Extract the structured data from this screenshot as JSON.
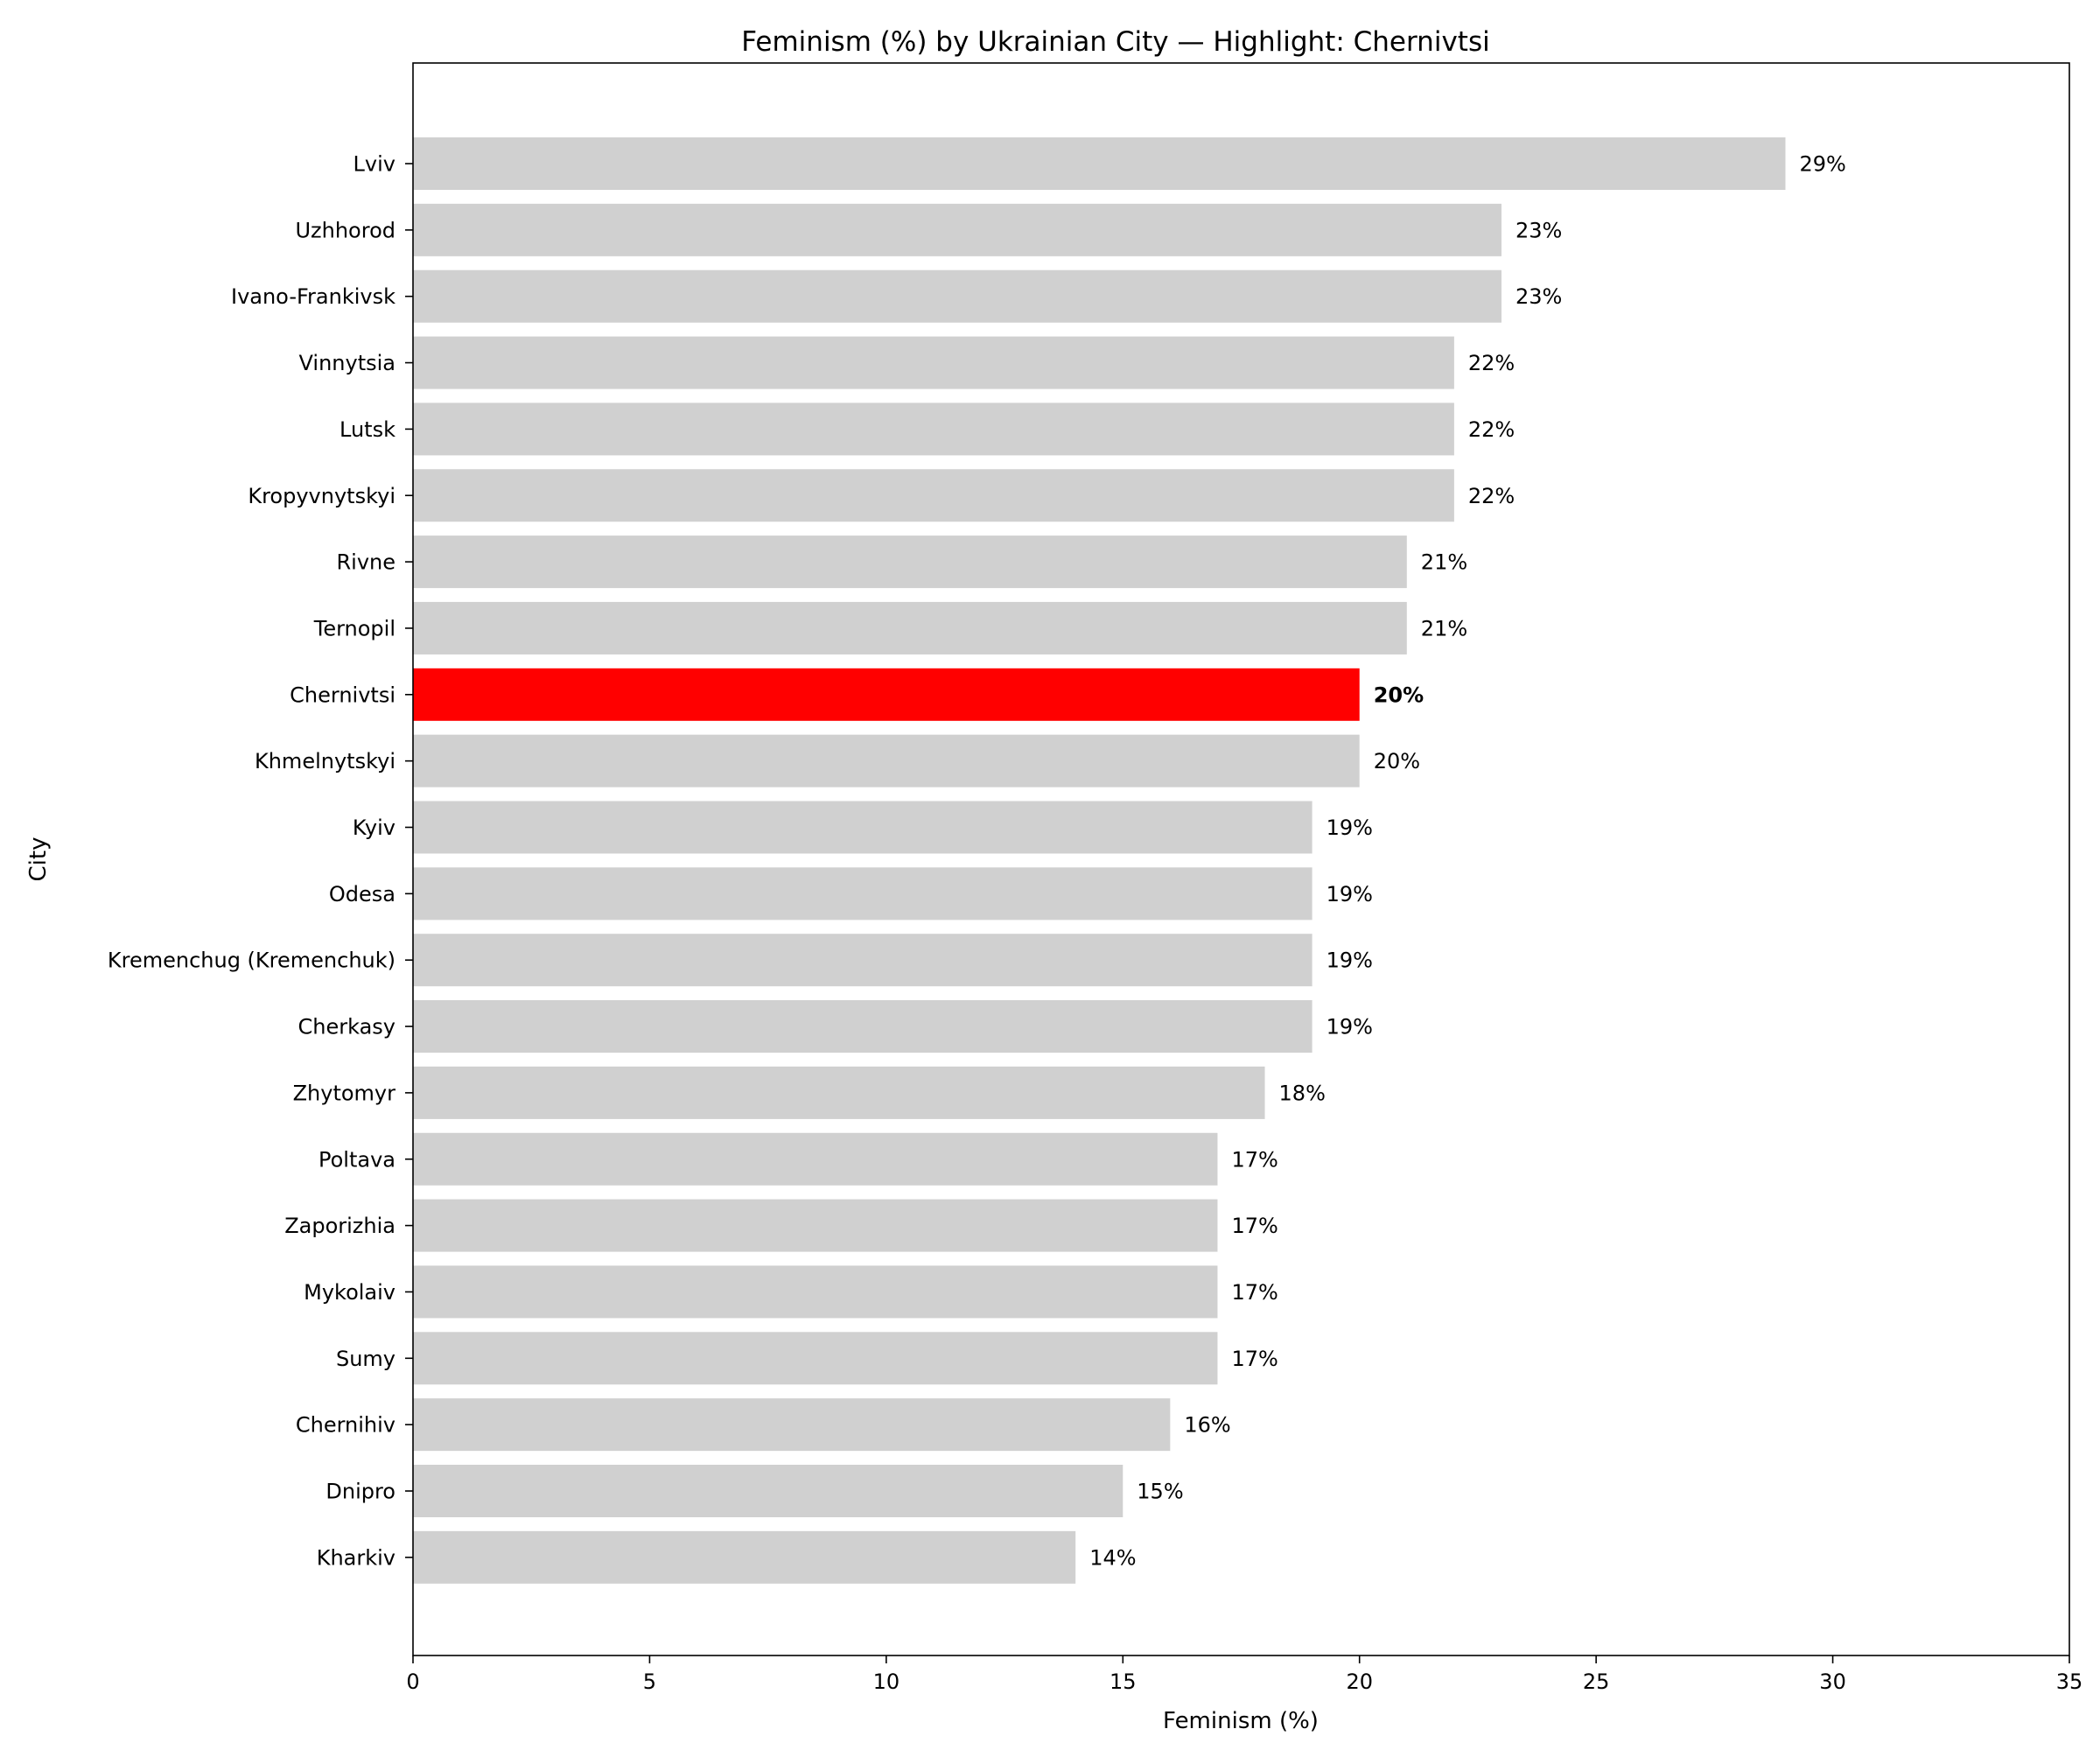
{
  "chart_data": {
    "type": "bar",
    "orientation": "horizontal",
    "title": "Feminism (%) by Ukrainian City — Highlight: Chernivtsi",
    "xlabel": "Feminism (%)",
    "ylabel": "City",
    "xlim": [
      0,
      35
    ],
    "xticks": [
      "0",
      "5",
      "10",
      "15",
      "20",
      "25",
      "30",
      "35"
    ],
    "grid": false,
    "highlight": "Chernivtsi",
    "colors": {
      "default": "#d0d0d0",
      "highlight": "#ff0000"
    },
    "categories": [
      "Lviv",
      "Uzhhorod",
      "Ivano-Frankivsk",
      "Vinnytsia",
      "Lutsk",
      "Kropyvnytskyi",
      "Rivne",
      "Ternopil",
      "Chernivtsi",
      "Khmelnytskyi",
      "Kyiv",
      "Odesa",
      "Kremenchug (Kremenchuk)",
      "Cherkasy",
      "Zhytomyr",
      "Poltava",
      "Zaporizhia",
      "Mykolaiv",
      "Sumy",
      "Chernihiv",
      "Dnipro",
      "Kharkiv"
    ],
    "values": [
      29,
      23,
      23,
      22,
      22,
      22,
      21,
      21,
      20,
      20,
      19,
      19,
      19,
      19,
      18,
      17,
      17,
      17,
      17,
      16,
      15,
      14
    ],
    "data_labels": [
      "29%",
      "23%",
      "23%",
      "22%",
      "22%",
      "22%",
      "21%",
      "21%",
      "20%",
      "20%",
      "19%",
      "19%",
      "19%",
      "19%",
      "18%",
      "17%",
      "17%",
      "17%",
      "17%",
      "16%",
      "15%",
      "14%"
    ]
  }
}
